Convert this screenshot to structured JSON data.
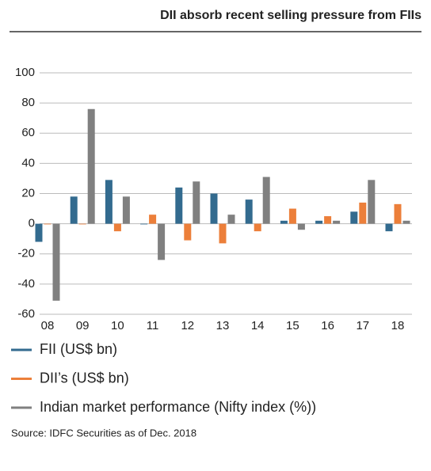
{
  "chart_data": {
    "type": "bar",
    "title": "DII absorb recent selling pressure from FIIs",
    "categories": [
      "08",
      "09",
      "10",
      "11",
      "12",
      "13",
      "14",
      "15",
      "16",
      "17",
      "18"
    ],
    "series": [
      {
        "name": "FII (US$ bn)",
        "color": "#336b8f",
        "values": [
          -12,
          18,
          29,
          0,
          24,
          20,
          16,
          2,
          2,
          8,
          -5
        ]
      },
      {
        "name": "DII’s (US$ bn)",
        "color": "#ec7f3a",
        "values": [
          0,
          0,
          -5,
          6,
          -11,
          -13,
          -5,
          10,
          5,
          14,
          13
        ]
      },
      {
        "name": "Indian market performance (Nifty index (%))",
        "color": "#808080",
        "values": [
          -51,
          76,
          18,
          -24,
          28,
          6,
          31,
          -4,
          2,
          29,
          2
        ]
      }
    ],
    "ylim": [
      -60,
      100
    ],
    "yticks": [
      -60,
      -40,
      -20,
      0,
      20,
      40,
      60,
      80,
      100
    ],
    "grid": true,
    "source": "Source: IDFC Securities as of Dec. 2018"
  }
}
